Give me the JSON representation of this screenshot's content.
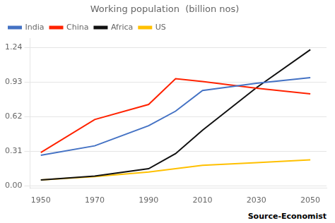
{
  "chart_data": {
    "type": "line",
    "title": "Working population  (billion nos)",
    "x": [
      1950,
      1970,
      1990,
      2000,
      2010,
      2030,
      2050
    ],
    "series": [
      {
        "name": "India",
        "color": "#4472C4",
        "values": [
          0.275,
          0.36,
          0.54,
          0.67,
          0.855,
          0.92,
          0.97
        ]
      },
      {
        "name": "China",
        "color": "#FF2200",
        "values": [
          0.3,
          0.595,
          0.73,
          0.96,
          0.935,
          0.875,
          0.825
        ]
      },
      {
        "name": "Africa",
        "color": "#111111",
        "values": [
          0.055,
          0.09,
          0.155,
          0.29,
          0.5,
          0.88,
          1.22
        ]
      },
      {
        "name": "US",
        "color": "#FFC000",
        "values": [
          0.055,
          0.085,
          0.125,
          0.155,
          0.185,
          0.21,
          0.235
        ]
      }
    ],
    "xlim": [
      1946,
      2056
    ],
    "xticks": [
      1950,
      1970,
      1990,
      2010,
      2030,
      2050
    ],
    "ylim": [
      -0.02,
      1.32
    ],
    "yticks": [
      {
        "value": 0,
        "label": "0.00"
      },
      0.31,
      0.62,
      0.93,
      1.24
    ],
    "grid": "y",
    "legend": "upper left",
    "annotations": [
      "Source-Economist"
    ]
  }
}
